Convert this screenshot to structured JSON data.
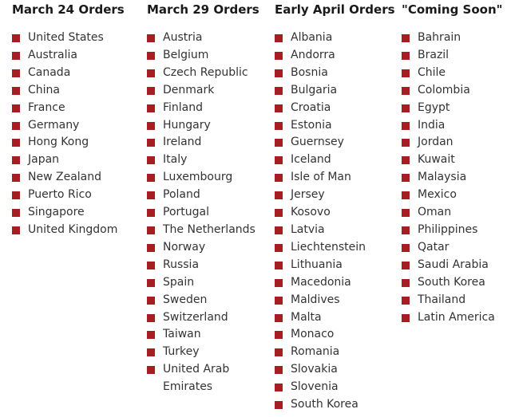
{
  "accent_color": "#a61e22",
  "columns": [
    {
      "title": "March 24 Orders",
      "items": [
        "United States",
        "Australia",
        "Canada",
        "China",
        "France",
        "Germany",
        "Hong Kong",
        "Japan",
        "New Zealand",
        "Puerto Rico",
        "Singapore",
        "United Kingdom"
      ]
    },
    {
      "title": "March 29 Orders",
      "items": [
        "Austria",
        "Belgium",
        "Czech Republic",
        "Denmark",
        "Finland",
        "Hungary",
        "Ireland",
        "Italy",
        "Luxembourg",
        "Poland",
        "Portugal",
        "The Netherlands",
        "Norway",
        "Russia",
        "Spain",
        "Sweden",
        "Switzerland",
        "Taiwan",
        "Turkey",
        "United Arab Emirates"
      ]
    },
    {
      "title": "Early April Orders",
      "items": [
        "Albania",
        "Andorra",
        "Bosnia",
        "Bulgaria",
        "Croatia",
        "Estonia",
        "Guernsey",
        "Iceland",
        "Isle of Man",
        "Jersey",
        "Kosovo",
        "Latvia",
        "Liechtenstein",
        "Lithuania",
        "Macedonia",
        "Maldives",
        "Malta",
        "Monaco",
        "Romania",
        "Slovakia",
        "Slovenia",
        "South Korea"
      ]
    },
    {
      "title": "\"Coming Soon\"",
      "items": [
        "Bahrain",
        "Brazil",
        "Chile",
        "Colombia",
        "Egypt",
        "India",
        "Jordan",
        "Kuwait",
        "Malaysia",
        "Mexico",
        "Oman",
        "Philippines",
        "Qatar",
        "Saudi Arabia",
        "South Korea",
        "Thailand",
        "Latin America"
      ]
    }
  ]
}
